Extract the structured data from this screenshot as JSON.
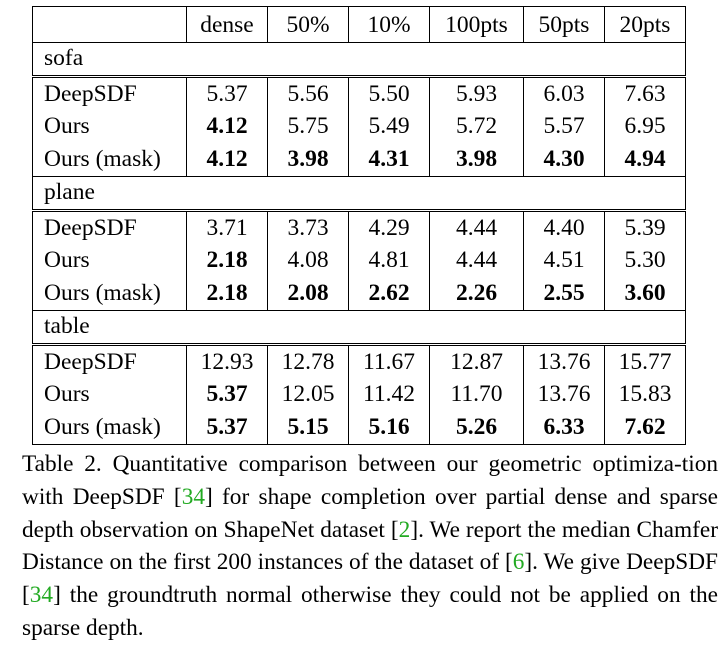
{
  "table": {
    "columns": [
      "dense",
      "50%",
      "10%",
      "100pts",
      "50pts",
      "20pts"
    ],
    "groups": [
      {
        "name": "sofa",
        "rows": [
          {
            "method": "DeepSDF",
            "values": [
              "5.37",
              "5.56",
              "5.50",
              "5.93",
              "6.03",
              "7.63"
            ],
            "bold": [
              false,
              false,
              false,
              false,
              false,
              false
            ]
          },
          {
            "method": "Ours",
            "values": [
              "4.12",
              "5.75",
              "5.49",
              "5.72",
              "5.57",
              "6.95"
            ],
            "bold": [
              true,
              false,
              false,
              false,
              false,
              false
            ]
          },
          {
            "method": "Ours (mask)",
            "values": [
              "4.12",
              "3.98",
              "4.31",
              "3.98",
              "4.30",
              "4.94"
            ],
            "bold": [
              true,
              true,
              true,
              true,
              true,
              true
            ]
          }
        ]
      },
      {
        "name": "plane",
        "rows": [
          {
            "method": "DeepSDF",
            "values": [
              "3.71",
              "3.73",
              "4.29",
              "4.44",
              "4.40",
              "5.39"
            ],
            "bold": [
              false,
              false,
              false,
              false,
              false,
              false
            ]
          },
          {
            "method": "Ours",
            "values": [
              "2.18",
              "4.08",
              "4.81",
              "4.44",
              "4.51",
              "5.30"
            ],
            "bold": [
              true,
              false,
              false,
              false,
              false,
              false
            ]
          },
          {
            "method": "Ours (mask)",
            "values": [
              "2.18",
              "2.08",
              "2.62",
              "2.26",
              "2.55",
              "3.60"
            ],
            "bold": [
              true,
              true,
              true,
              true,
              true,
              true
            ]
          }
        ]
      },
      {
        "name": "table",
        "rows": [
          {
            "method": "DeepSDF",
            "values": [
              "12.93",
              "12.78",
              "11.67",
              "12.87",
              "13.76",
              "15.77"
            ],
            "bold": [
              false,
              false,
              false,
              false,
              false,
              false
            ]
          },
          {
            "method": "Ours",
            "values": [
              "5.37",
              "12.05",
              "11.42",
              "11.70",
              "13.76",
              "15.83"
            ],
            "bold": [
              true,
              false,
              false,
              false,
              false,
              false
            ]
          },
          {
            "method": "Ours (mask)",
            "values": [
              "5.37",
              "5.15",
              "5.16",
              "5.26",
              "6.33",
              "7.62"
            ],
            "bold": [
              true,
              true,
              true,
              true,
              true,
              true
            ]
          }
        ]
      }
    ]
  },
  "caption": {
    "segments": [
      {
        "text": "Table 2. Quantitative comparison between our geometric optimiza-tion with DeepSDF ",
        "ref": false
      },
      {
        "text": "[",
        "ref": false
      },
      {
        "text": "34",
        "ref": true
      },
      {
        "text": "] for shape completion over partial dense and sparse depth observation on ShapeNet dataset ",
        "ref": false
      },
      {
        "text": "[",
        "ref": false
      },
      {
        "text": "2",
        "ref": true
      },
      {
        "text": "].  We report the median Chamfer Distance on the first 200 instances of the dataset of ",
        "ref": false
      },
      {
        "text": "[",
        "ref": false
      },
      {
        "text": "6",
        "ref": true
      },
      {
        "text": "]. We give DeepSDF ",
        "ref": false
      },
      {
        "text": "[",
        "ref": false
      },
      {
        "text": "34",
        "ref": true
      },
      {
        "text": "] the groundtruth normal otherwise they could not be applied on the sparse depth.",
        "ref": false
      }
    ]
  },
  "colors": {
    "reference_link": "#22aa22",
    "text": "#000000"
  }
}
